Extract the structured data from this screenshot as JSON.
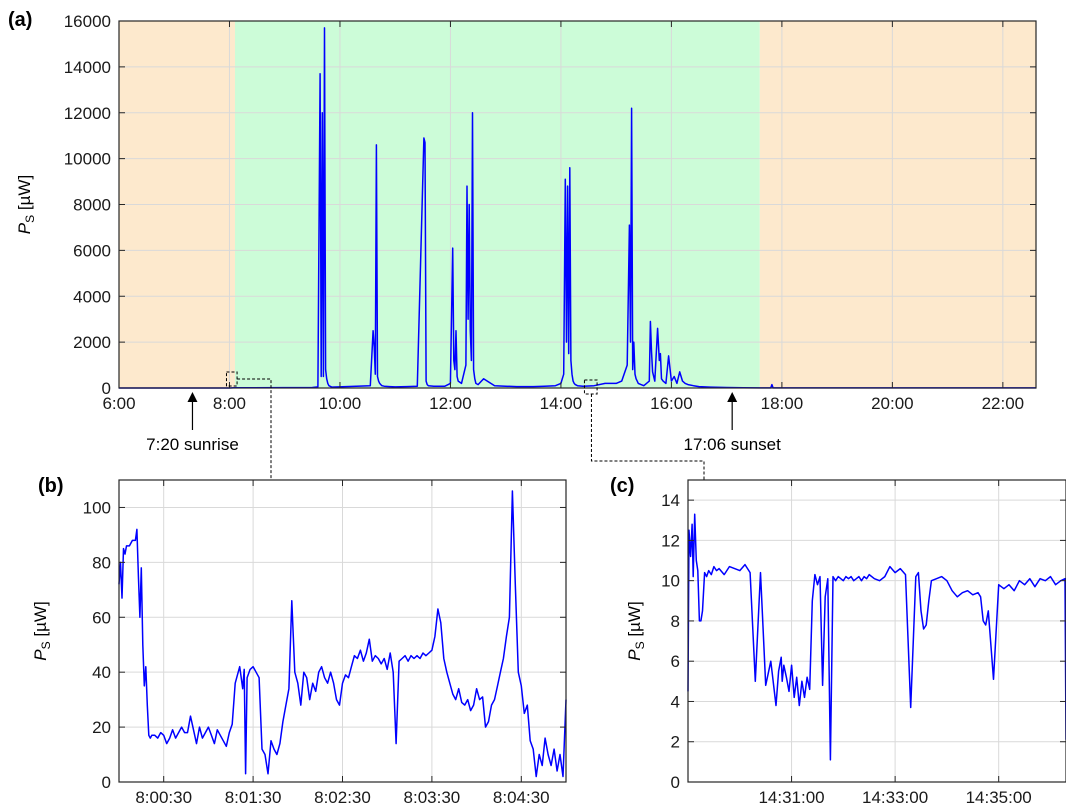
{
  "colors": {
    "line": "#0000ff",
    "day_shade": "#ccfcd8",
    "night_shade": "#fde9cd",
    "grid": "#d9d9d9",
    "axis": "#262626"
  },
  "chart_data": [
    {
      "panel": "(a)",
      "type": "line",
      "ylabel_symbol": "P",
      "ylabel_sub": "S",
      "ylabel_unit": "[µW]",
      "x_unit": "hours",
      "xlim": [
        6,
        22.6
      ],
      "ylim": [
        0,
        16000
      ],
      "xticks": [
        6,
        8,
        10,
        12,
        14,
        16,
        18,
        20,
        22
      ],
      "xtick_labels": [
        "6:00",
        "8:00",
        "10:00",
        "12:00",
        "14:00",
        "16:00",
        "18:00",
        "20:00",
        "22:00"
      ],
      "yticks": [
        0,
        2000,
        4000,
        6000,
        8000,
        10000,
        12000,
        14000,
        16000
      ],
      "ytick_labels": [
        "0",
        "2000",
        "4000",
        "6000",
        "8000",
        "10000",
        "12000",
        "14000",
        "16000"
      ],
      "grid": true,
      "shading": [
        {
          "from": 6,
          "to": 8.1,
          "kind": "night"
        },
        {
          "from": 8.1,
          "to": 17.6,
          "kind": "day"
        },
        {
          "from": 17.6,
          "to": 22.6,
          "kind": "night"
        }
      ],
      "annotations": [
        {
          "x": 7.33,
          "text": "7:20 sunrise"
        },
        {
          "x": 17.1,
          "text": "17:06 sunset"
        }
      ],
      "series": [
        {
          "x": [
            6,
            8.0,
            8.08,
            9.5,
            9.6,
            9.64,
            9.66,
            9.68,
            9.7,
            9.72,
            9.74,
            9.76,
            9.78,
            9.8,
            9.85,
            10.55,
            10.6,
            10.62,
            10.64,
            10.66,
            10.68,
            10.7,
            10.72,
            10.74,
            10.76,
            10.8,
            10.9,
            11.0,
            11.2,
            11.4,
            11.52,
            11.54,
            11.56,
            11.58,
            11.6,
            11.7,
            11.9,
            12.0,
            12.04,
            12.06,
            12.08,
            12.1,
            12.12,
            12.14,
            12.2,
            12.28,
            12.3,
            12.32,
            12.34,
            12.36,
            12.38,
            12.4,
            12.42,
            12.44,
            12.46,
            12.5,
            12.6,
            12.8,
            13.0,
            13.2,
            13.5,
            13.7,
            13.9,
            14.0,
            14.05,
            14.08,
            14.1,
            14.12,
            14.14,
            14.16,
            14.18,
            14.2,
            14.22,
            14.24,
            14.26,
            14.3,
            14.4,
            14.6,
            14.8,
            15.0,
            15.1,
            15.2,
            15.24,
            15.26,
            15.28,
            15.3,
            15.32,
            15.34,
            15.36,
            15.38,
            15.4,
            15.45,
            15.5,
            15.6,
            15.62,
            15.64,
            15.66,
            15.7,
            15.75,
            15.78,
            15.8,
            15.82,
            15.85,
            15.9,
            15.95,
            16.0,
            16.05,
            16.1,
            16.15,
            16.2,
            16.25,
            16.3,
            16.4,
            16.5,
            16.7,
            17.0,
            17.3,
            17.6,
            17.8,
            17.82,
            17.84,
            18.2,
            19,
            20,
            21,
            22,
            22.6
          ],
          "y": [
            0,
            0,
            10,
            20,
            50,
            13700,
            500,
            12000,
            500,
            15700,
            800,
            400,
            200,
            100,
            40,
            100,
            2500,
            1800,
            600,
            10600,
            500,
            300,
            200,
            150,
            100,
            80,
            60,
            50,
            60,
            80,
            10900,
            10700,
            300,
            150,
            100,
            80,
            80,
            200,
            6100,
            1200,
            800,
            2500,
            500,
            300,
            200,
            1000,
            8800,
            3000,
            8000,
            2500,
            1200,
            12000,
            800,
            400,
            200,
            150,
            400,
            100,
            80,
            60,
            60,
            80,
            100,
            200,
            600,
            9100,
            2000,
            8800,
            1500,
            9600,
            1200,
            600,
            300,
            200,
            150,
            100,
            80,
            100,
            200,
            200,
            300,
            1000,
            7100,
            2000,
            12200,
            800,
            2000,
            600,
            400,
            300,
            200,
            150,
            100,
            300,
            2900,
            1600,
            700,
            300,
            2600,
            1200,
            1500,
            400,
            300,
            200,
            1400,
            300,
            500,
            200,
            700,
            300,
            200,
            150,
            100,
            60,
            40,
            20,
            10,
            5,
            5,
            150,
            5,
            5,
            5,
            5,
            5,
            5,
            5
          ]
        }
      ]
    },
    {
      "panel": "(b)",
      "type": "line",
      "ylabel_symbol": "P",
      "ylabel_sub": "S",
      "ylabel_unit": "[µW]",
      "x_unit": "seconds after 8:00:00",
      "xlim": [
        0,
        300
      ],
      "ylim": [
        0,
        110
      ],
      "xticks": [
        30,
        90,
        150,
        210,
        270
      ],
      "xtick_labels": [
        "8:00:30",
        "8:01:30",
        "8:02:30",
        "8:03:30",
        "8:04:30"
      ],
      "yticks": [
        0,
        20,
        40,
        60,
        80,
        100
      ],
      "ytick_labels": [
        "0",
        "20",
        "40",
        "60",
        "80",
        "100"
      ],
      "grid": true,
      "series": [
        {
          "x": [
            0,
            1,
            2,
            3,
            4,
            5,
            7,
            9,
            11,
            12,
            13,
            14,
            15,
            16,
            17,
            18,
            19,
            20,
            21,
            22,
            24,
            26,
            28,
            30,
            32,
            34,
            36,
            38,
            40,
            42,
            44,
            46,
            48,
            50,
            52,
            54,
            56,
            58,
            60,
            62,
            64,
            66,
            68,
            70,
            72,
            74,
            76,
            78,
            80,
            81,
            82,
            83,
            84,
            85,
            86,
            88,
            90,
            92,
            94,
            96,
            98,
            100,
            102,
            104,
            106,
            108,
            110,
            112,
            114,
            116,
            118,
            120,
            122,
            124,
            126,
            128,
            130,
            132,
            134,
            136,
            138,
            140,
            142,
            144,
            146,
            148,
            150,
            152,
            154,
            156,
            158,
            160,
            162,
            164,
            166,
            168,
            170,
            172,
            174,
            176,
            178,
            180,
            182,
            184,
            186,
            188,
            190,
            192,
            194,
            196,
            198,
            200,
            202,
            204,
            206,
            208,
            210,
            212,
            214,
            216,
            218,
            220,
            222,
            224,
            226,
            228,
            230,
            232,
            234,
            236,
            238,
            240,
            242,
            244,
            246,
            248,
            250,
            252,
            254,
            256,
            258,
            260,
            262,
            264,
            266,
            268,
            270,
            272,
            274,
            276,
            278,
            280,
            282,
            284,
            286,
            288,
            290,
            292,
            294,
            296,
            298,
            300
          ],
          "y": [
            72,
            80,
            67,
            85,
            83,
            86,
            86,
            88,
            88,
            92,
            75,
            60,
            78,
            50,
            35,
            42,
            28,
            17,
            16,
            17,
            17,
            16,
            18,
            17,
            14,
            16,
            19,
            16,
            18,
            20,
            18,
            18,
            24,
            19,
            14,
            20,
            16,
            18,
            20,
            17,
            14,
            19,
            17,
            15,
            13,
            18,
            21,
            36,
            40,
            42,
            38,
            34,
            41,
            3,
            38,
            41,
            42,
            40,
            38,
            12,
            10,
            3,
            15,
            12,
            10,
            14,
            22,
            28,
            34,
            66,
            40,
            36,
            28,
            40,
            38,
            30,
            36,
            33,
            40,
            42,
            38,
            36,
            40,
            36,
            30,
            28,
            36,
            39,
            38,
            42,
            46,
            45,
            48,
            44,
            47,
            52,
            44,
            46,
            45,
            43,
            45,
            41,
            47,
            40,
            14,
            44,
            45,
            46,
            44,
            46,
            45,
            46,
            45,
            47,
            46,
            47,
            48,
            53,
            63,
            58,
            45,
            40,
            36,
            32,
            30,
            34,
            29,
            28,
            30,
            26,
            28,
            34,
            30,
            31,
            20,
            22,
            28,
            30,
            35,
            40,
            45,
            53,
            60,
            106,
            72,
            40,
            35,
            25,
            28,
            15,
            12,
            2,
            10,
            6,
            16,
            10,
            6,
            12,
            4,
            10,
            2,
            30
          ]
        }
      ]
    },
    {
      "panel": "(c)",
      "type": "line",
      "ylabel_symbol": "P",
      "ylabel_sub": "S",
      "ylabel_unit": "[µW]",
      "x_unit": "minutes after 14:29:00",
      "xlim": [
        0,
        7.3
      ],
      "ylim": [
        0,
        15
      ],
      "xticks": [
        2,
        4,
        6
      ],
      "xtick_labels": [
        "14:31:00",
        "14:33:00",
        "14:35:00"
      ],
      "yticks": [
        0,
        2,
        4,
        6,
        8,
        10,
        12,
        14
      ],
      "ytick_labels": [
        "0",
        "2",
        "4",
        "6",
        "8",
        "10",
        "12",
        "14"
      ],
      "grid": true,
      "series": [
        {
          "x": [
            0,
            0.02,
            0.05,
            0.08,
            0.1,
            0.13,
            0.16,
            0.19,
            0.22,
            0.25,
            0.28,
            0.32,
            0.36,
            0.4,
            0.45,
            0.5,
            0.55,
            0.6,
            0.7,
            0.8,
            0.9,
            1.0,
            1.1,
            1.2,
            1.3,
            1.4,
            1.5,
            1.6,
            1.7,
            1.75,
            1.8,
            1.82,
            1.85,
            1.9,
            1.95,
            2.0,
            2.05,
            2.1,
            2.15,
            2.2,
            2.25,
            2.3,
            2.35,
            2.4,
            2.45,
            2.5,
            2.55,
            2.6,
            2.65,
            2.7,
            2.75,
            2.8,
            2.85,
            2.9,
            2.95,
            3.0,
            3.05,
            3.1,
            3.15,
            3.2,
            3.25,
            3.3,
            3.35,
            3.4,
            3.45,
            3.5,
            3.6,
            3.7,
            3.8,
            3.9,
            4.0,
            4.1,
            4.2,
            4.3,
            4.4,
            4.45,
            4.5,
            4.55,
            4.6,
            4.65,
            4.7,
            4.8,
            4.9,
            5.0,
            5.1,
            5.2,
            5.3,
            5.4,
            5.5,
            5.6,
            5.65,
            5.7,
            5.75,
            5.8,
            5.9,
            6.0,
            6.1,
            6.2,
            6.3,
            6.4,
            6.5,
            6.6,
            6.7,
            6.8,
            6.9,
            7.0,
            7.1,
            7.2,
            7.28,
            7.3
          ],
          "y": [
            4.5,
            12.5,
            11.2,
            12.8,
            10.2,
            13.3,
            11,
            10.5,
            8,
            8,
            8.5,
            10.4,
            10.2,
            10.5,
            10.3,
            10.7,
            10.5,
            10.6,
            10.3,
            10.7,
            10.6,
            10.5,
            10.8,
            10.4,
            5,
            10.4,
            4.8,
            6,
            3.8,
            5.5,
            6.2,
            5,
            5.8,
            5.2,
            4.5,
            5.8,
            4.2,
            5.2,
            3.8,
            5,
            4.2,
            5.2,
            4.6,
            9,
            10.3,
            9.8,
            10.2,
            4.8,
            9.2,
            10.1,
            1.1,
            10.2,
            10,
            10.2,
            10.1,
            10,
            10.2,
            10.1,
            10.2,
            10,
            10.1,
            10.2,
            10,
            10.2,
            10.1,
            10.3,
            10.1,
            10,
            10.2,
            10.7,
            10.4,
            10.6,
            10.3,
            3.7,
            10.2,
            10.4,
            8.5,
            7.6,
            7.8,
            9,
            10,
            10.1,
            10.2,
            10,
            9.5,
            9.2,
            9.4,
            9.5,
            9.3,
            9.4,
            9.2,
            8,
            7.8,
            8.5,
            5.1,
            9.8,
            9.6,
            9.8,
            9.5,
            10,
            9.8,
            10.1,
            9.7,
            10.1,
            10,
            10.2,
            9.8,
            10,
            10.1,
            2.1
          ]
        }
      ]
    }
  ]
}
